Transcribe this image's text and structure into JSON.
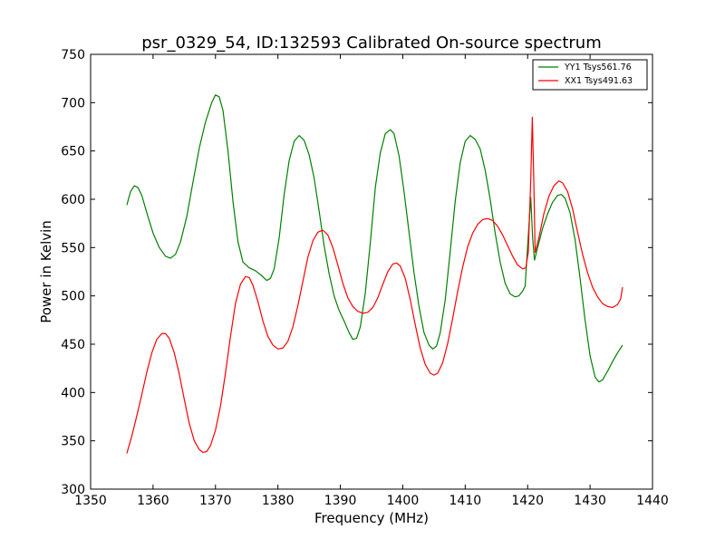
{
  "chart_data": {
    "type": "line",
    "title": "psr_0329_54, ID:132593 Calibrated On-source spectrum",
    "xlabel": "Frequency (MHz)",
    "ylabel": "Power in Kelvin",
    "xlim": [
      1350,
      1440
    ],
    "ylim": [
      300,
      750
    ],
    "xticks": [
      "1350",
      "1360",
      "1370",
      "1380",
      "1390",
      "1400",
      "1410",
      "1420",
      "1430",
      "1440"
    ],
    "yticks": [
      "300",
      "350",
      "400",
      "450",
      "500",
      "550",
      "600",
      "650",
      "700",
      "750"
    ],
    "grid": false,
    "legend_position": "top-right",
    "series": [
      {
        "name": "YY1 Tsys561.76",
        "color": "#008000",
        "points": [
          [
            1355.8,
            594
          ],
          [
            1356.4,
            608
          ],
          [
            1357.0,
            614
          ],
          [
            1357.6,
            612
          ],
          [
            1358.2,
            604
          ],
          [
            1359.0,
            586
          ],
          [
            1360.0,
            565
          ],
          [
            1361.0,
            550
          ],
          [
            1362.0,
            541
          ],
          [
            1362.8,
            539
          ],
          [
            1363.6,
            543
          ],
          [
            1364.4,
            556
          ],
          [
            1365.4,
            582
          ],
          [
            1366.4,
            618
          ],
          [
            1367.4,
            653
          ],
          [
            1368.4,
            680
          ],
          [
            1369.4,
            700
          ],
          [
            1370.0,
            708
          ],
          [
            1370.6,
            706
          ],
          [
            1371.2,
            692
          ],
          [
            1372.0,
            650
          ],
          [
            1372.8,
            598
          ],
          [
            1373.6,
            556
          ],
          [
            1374.4,
            535
          ],
          [
            1375.4,
            529
          ],
          [
            1376.4,
            526
          ],
          [
            1377.4,
            521
          ],
          [
            1378.2,
            516
          ],
          [
            1378.8,
            518
          ],
          [
            1379.4,
            528
          ],
          [
            1380.2,
            560
          ],
          [
            1381.0,
            605
          ],
          [
            1381.8,
            640
          ],
          [
            1382.6,
            660
          ],
          [
            1383.4,
            666
          ],
          [
            1384.2,
            661
          ],
          [
            1385.0,
            646
          ],
          [
            1385.8,
            622
          ],
          [
            1386.6,
            588
          ],
          [
            1387.4,
            552
          ],
          [
            1388.2,
            523
          ],
          [
            1389.0,
            500
          ],
          [
            1389.8,
            485
          ],
          [
            1390.6,
            474
          ],
          [
            1391.4,
            462
          ],
          [
            1392.0,
            455
          ],
          [
            1392.6,
            456
          ],
          [
            1393.2,
            468
          ],
          [
            1394.0,
            503
          ],
          [
            1394.8,
            555
          ],
          [
            1395.6,
            612
          ],
          [
            1396.4,
            648
          ],
          [
            1397.2,
            668
          ],
          [
            1398.0,
            672
          ],
          [
            1398.6,
            668
          ],
          [
            1399.4,
            645
          ],
          [
            1400.2,
            608
          ],
          [
            1401.0,
            566
          ],
          [
            1401.8,
            524
          ],
          [
            1402.6,
            489
          ],
          [
            1403.4,
            462
          ],
          [
            1404.2,
            449
          ],
          [
            1404.8,
            445
          ],
          [
            1405.4,
            448
          ],
          [
            1406.0,
            462
          ],
          [
            1406.8,
            496
          ],
          [
            1407.6,
            546
          ],
          [
            1408.4,
            598
          ],
          [
            1409.2,
            638
          ],
          [
            1410.0,
            660
          ],
          [
            1410.8,
            666
          ],
          [
            1411.6,
            662
          ],
          [
            1412.4,
            652
          ],
          [
            1413.2,
            630
          ],
          [
            1414.0,
            600
          ],
          [
            1414.8,
            565
          ],
          [
            1415.6,
            535
          ],
          [
            1416.4,
            513
          ],
          [
            1417.2,
            502
          ],
          [
            1418.0,
            499
          ],
          [
            1418.6,
            500
          ],
          [
            1419.2,
            505
          ],
          [
            1419.6,
            510
          ],
          [
            1420.1,
            562
          ],
          [
            1420.5,
            602
          ],
          [
            1420.8,
            560
          ],
          [
            1421.1,
            537
          ],
          [
            1421.6,
            550
          ],
          [
            1422.4,
            570
          ],
          [
            1423.2,
            585
          ],
          [
            1424.0,
            597
          ],
          [
            1424.8,
            604
          ],
          [
            1425.4,
            605
          ],
          [
            1426.0,
            601
          ],
          [
            1426.8,
            586
          ],
          [
            1427.6,
            558
          ],
          [
            1428.4,
            518
          ],
          [
            1429.2,
            475
          ],
          [
            1430.0,
            438
          ],
          [
            1430.8,
            416
          ],
          [
            1431.4,
            411
          ],
          [
            1432.0,
            413
          ],
          [
            1432.8,
            422
          ],
          [
            1433.6,
            432
          ],
          [
            1434.4,
            441
          ],
          [
            1435.2,
            449
          ]
        ]
      },
      {
        "name": "XX1 Tsys491.63",
        "color": "#ff0000",
        "points": [
          [
            1355.8,
            337
          ],
          [
            1356.6,
            355
          ],
          [
            1357.4,
            376
          ],
          [
            1358.2,
            398
          ],
          [
            1359.0,
            421
          ],
          [
            1359.8,
            441
          ],
          [
            1360.6,
            455
          ],
          [
            1361.4,
            461
          ],
          [
            1362.0,
            461
          ],
          [
            1362.6,
            456
          ],
          [
            1363.4,
            441
          ],
          [
            1364.2,
            419
          ],
          [
            1365.0,
            393
          ],
          [
            1365.8,
            368
          ],
          [
            1366.6,
            350
          ],
          [
            1367.4,
            341
          ],
          [
            1368.0,
            338
          ],
          [
            1368.6,
            339
          ],
          [
            1369.2,
            345
          ],
          [
            1370.0,
            361
          ],
          [
            1370.8,
            386
          ],
          [
            1371.6,
            420
          ],
          [
            1372.4,
            458
          ],
          [
            1373.2,
            492
          ],
          [
            1374.0,
            512
          ],
          [
            1374.8,
            520
          ],
          [
            1375.4,
            519
          ],
          [
            1376.0,
            511
          ],
          [
            1376.8,
            494
          ],
          [
            1377.6,
            474
          ],
          [
            1378.4,
            458
          ],
          [
            1379.2,
            449
          ],
          [
            1380.0,
            445
          ],
          [
            1380.8,
            446
          ],
          [
            1381.6,
            453
          ],
          [
            1382.4,
            468
          ],
          [
            1383.2,
            490
          ],
          [
            1384.0,
            515
          ],
          [
            1384.8,
            540
          ],
          [
            1385.6,
            557
          ],
          [
            1386.4,
            566
          ],
          [
            1387.2,
            568
          ],
          [
            1388.0,
            563
          ],
          [
            1388.8,
            550
          ],
          [
            1389.6,
            532
          ],
          [
            1390.4,
            513
          ],
          [
            1391.2,
            498
          ],
          [
            1392.0,
            489
          ],
          [
            1392.8,
            484
          ],
          [
            1393.6,
            482
          ],
          [
            1394.4,
            483
          ],
          [
            1395.2,
            488
          ],
          [
            1396.0,
            498
          ],
          [
            1396.8,
            512
          ],
          [
            1397.6,
            525
          ],
          [
            1398.4,
            533
          ],
          [
            1399.0,
            534
          ],
          [
            1399.6,
            531
          ],
          [
            1400.4,
            518
          ],
          [
            1401.2,
            496
          ],
          [
            1402.0,
            470
          ],
          [
            1402.8,
            446
          ],
          [
            1403.6,
            429
          ],
          [
            1404.4,
            420
          ],
          [
            1405.0,
            418
          ],
          [
            1405.6,
            420
          ],
          [
            1406.4,
            431
          ],
          [
            1407.2,
            451
          ],
          [
            1408.0,
            477
          ],
          [
            1408.8,
            505
          ],
          [
            1409.6,
            530
          ],
          [
            1410.4,
            551
          ],
          [
            1411.2,
            565
          ],
          [
            1412.0,
            574
          ],
          [
            1412.8,
            579
          ],
          [
            1413.6,
            580
          ],
          [
            1414.4,
            578
          ],
          [
            1415.2,
            572
          ],
          [
            1416.0,
            563
          ],
          [
            1416.8,
            552
          ],
          [
            1417.6,
            541
          ],
          [
            1418.4,
            532
          ],
          [
            1419.2,
            528
          ],
          [
            1419.7,
            529
          ],
          [
            1420.1,
            545
          ],
          [
            1420.5,
            620
          ],
          [
            1420.75,
            685
          ],
          [
            1421.0,
            615
          ],
          [
            1421.2,
            545
          ],
          [
            1421.8,
            560
          ],
          [
            1422.6,
            585
          ],
          [
            1423.4,
            603
          ],
          [
            1424.2,
            614
          ],
          [
            1425.0,
            619
          ],
          [
            1425.6,
            617
          ],
          [
            1426.4,
            608
          ],
          [
            1427.2,
            590
          ],
          [
            1428.0,
            566
          ],
          [
            1428.8,
            543
          ],
          [
            1429.6,
            524
          ],
          [
            1430.4,
            509
          ],
          [
            1431.2,
            499
          ],
          [
            1432.0,
            492
          ],
          [
            1432.8,
            489
          ],
          [
            1433.6,
            488
          ],
          [
            1434.4,
            491
          ],
          [
            1434.9,
            497
          ],
          [
            1435.2,
            509
          ]
        ]
      }
    ]
  }
}
